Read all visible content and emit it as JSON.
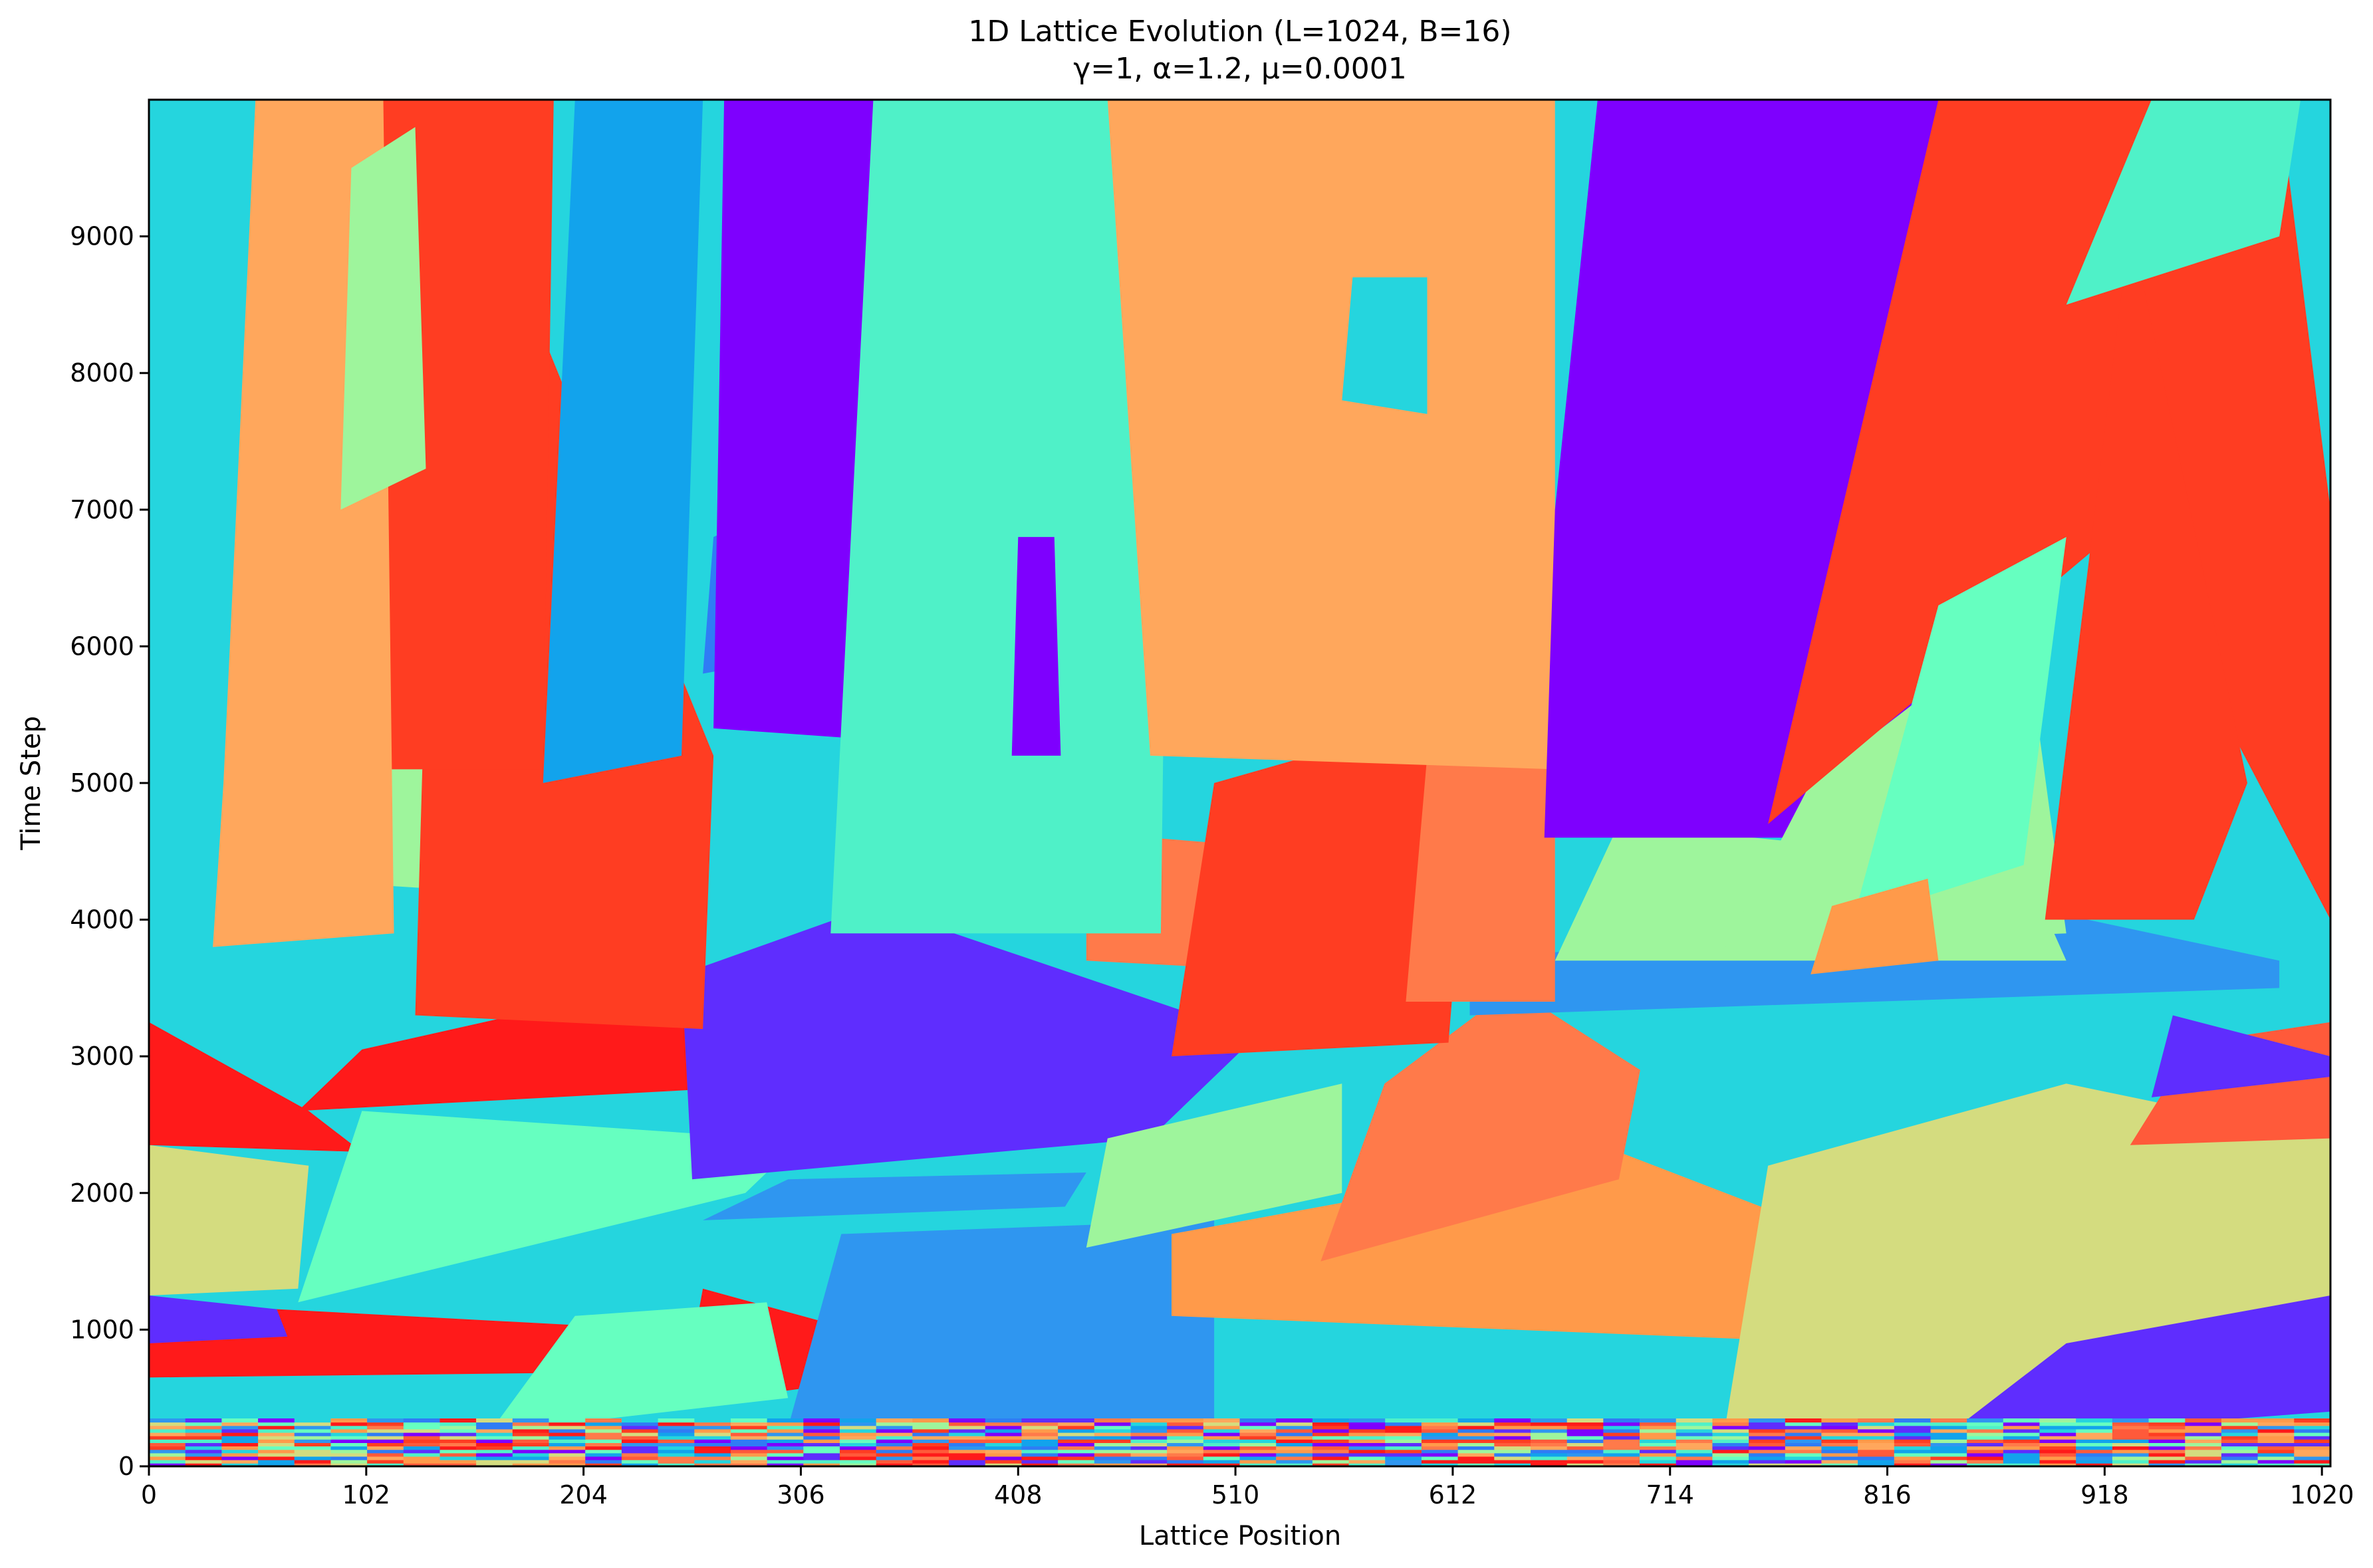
{
  "chart_data": {
    "type": "heatmap",
    "title_line1": "1D Lattice Evolution (L=1024, B=16)",
    "title_line2": "γ=1, α=1.2, μ=0.0001",
    "xlabel": "Lattice Position",
    "ylabel": "Time Step",
    "xlim": [
      0,
      1024
    ],
    "ylim": [
      0,
      10000
    ],
    "x_ticks": [
      0,
      102,
      204,
      306,
      408,
      510,
      612,
      714,
      816,
      918,
      1020
    ],
    "y_ticks": [
      0,
      1000,
      2000,
      3000,
      4000,
      5000,
      6000,
      7000,
      8000,
      9000
    ],
    "colormap": "rainbow",
    "n_states": 16,
    "background_color": "#25d5de",
    "domains": [
      {
        "color": "#2f96f0",
        "x": [
          90,
          200,
          150,
          40
        ],
        "y": [
          0,
          0,
          300,
          300
        ]
      },
      {
        "color": "#ff1a1a",
        "x": [
          0,
          290,
          240,
          0
        ],
        "y": [
          650,
          700,
          1000,
          1200
        ]
      },
      {
        "color": "#5f2dfe",
        "x": [
          0,
          65,
          60,
          0
        ],
        "y": [
          900,
          950,
          1150,
          1250
        ]
      },
      {
        "color": "#d4dc7f",
        "x": [
          0,
          70,
          75,
          0
        ],
        "y": [
          1250,
          1300,
          2200,
          2350
        ]
      },
      {
        "color": "#ff1a1a",
        "x": [
          0,
          100,
          75,
          0
        ],
        "y": [
          2350,
          2300,
          2600,
          3250
        ]
      },
      {
        "color": "#ff1a1a",
        "x": [
          70,
          310,
          290,
          200,
          100
        ],
        "y": [
          2600,
          2800,
          3300,
          3400,
          3050
        ]
      },
      {
        "color": "#66ffc0",
        "x": [
          70,
          280,
          300,
          290,
          100
        ],
        "y": [
          1200,
          2000,
          2300,
          2400,
          2600
        ]
      },
      {
        "color": "#ff1a1a",
        "x": [
          250,
          345,
          330,
          260
        ],
        "y": [
          450,
          650,
          1000,
          1300
        ]
      },
      {
        "color": "#66ffc0",
        "x": [
          160,
          300,
          290,
          200
        ],
        "y": [
          250,
          500,
          1200,
          1100
        ]
      },
      {
        "color": "#2f96f0",
        "x": [
          295,
          500,
          500,
          325
        ],
        "y": [
          0,
          0,
          1800,
          1700
        ]
      },
      {
        "color": "#5f2dfe",
        "x": [
          255,
          470,
          520,
          340,
          250
        ],
        "y": [
          2100,
          2400,
          3150,
          4100,
          3600
        ]
      },
      {
        "color": "#2f96f0",
        "x": [
          260,
          430,
          440,
          300
        ],
        "y": [
          1800,
          1900,
          2150,
          2100
        ]
      },
      {
        "color": "#ff9a4a",
        "x": [
          480,
          800,
          790,
          690,
          480
        ],
        "y": [
          1100,
          900,
          1700,
          2300,
          1700
        ]
      },
      {
        "color": "#5f2dfe",
        "x": [
          850,
          1024,
          1024,
          920,
          850
        ],
        "y": [
          200,
          400,
          1250,
          1650,
          900
        ]
      },
      {
        "color": "#d4dc7f",
        "x": [
          740,
          850,
          900,
          1024,
          1024,
          900,
          760
        ],
        "y": [
          300,
          300,
          900,
          1250,
          2400,
          2800,
          2200
        ]
      },
      {
        "color": "#ff5a3a",
        "x": [
          930,
          1024,
          1024,
          960
        ],
        "y": [
          2350,
          2400,
          3250,
          3100
        ]
      },
      {
        "color": "#5f2dfe",
        "x": [
          940,
          1024,
          1024,
          950
        ],
        "y": [
          2700,
          2850,
          3000,
          3300
        ]
      },
      {
        "color": "#ff7a4a",
        "x": [
          550,
          690,
          700,
          640,
          580
        ],
        "y": [
          1500,
          2100,
          2900,
          3500,
          2800
        ]
      },
      {
        "color": "#9ef59c",
        "x": [
          440,
          560,
          560,
          450
        ],
        "y": [
          1600,
          2000,
          2800,
          2400
        ]
      },
      {
        "color": "#2f96f0",
        "x": [
          620,
          1000,
          1000,
          880,
          620
        ],
        "y": [
          3300,
          3500,
          3700,
          4100,
          3700
        ]
      },
      {
        "color": "#9ef59c",
        "x": [
          660,
          900,
          880,
          690
        ],
        "y": [
          3700,
          3700,
          4400,
          4700
        ]
      },
      {
        "color": "#ff7a4a",
        "x": [
          440,
          560,
          550,
          470,
          440
        ],
        "y": [
          3700,
          3600,
          4500,
          4600,
          4000
        ]
      },
      {
        "color": "#ff3d22",
        "x": [
          480,
          610,
          620,
          590,
          500
        ],
        "y": [
          3000,
          3100,
          5000,
          5400,
          5000
        ]
      },
      {
        "color": "#ff7a4a",
        "x": [
          590,
          660,
          660,
          600
        ],
        "y": [
          3400,
          3400,
          5300,
          5200
        ]
      },
      {
        "color": "#9ef59c",
        "x": [
          60,
          160,
          140,
          45
        ],
        "y": [
          4300,
          4200,
          5300,
          6200
        ]
      },
      {
        "color": "#ff3d22",
        "x": [
          125,
          260,
          265,
          140,
          130
        ],
        "y": [
          3300,
          3200,
          5200,
          10000,
          6000
        ]
      },
      {
        "color": "#ff3d22",
        "x": [
          105,
          185,
          190,
          110
        ],
        "y": [
          5100,
          5100,
          10000,
          10000
        ]
      },
      {
        "color": "#ffa75c",
        "x": [
          30,
          115,
          110,
          50,
          35
        ],
        "y": [
          3800,
          3900,
          10000,
          10000,
          5000
        ]
      },
      {
        "color": "#9ef59c",
        "x": [
          90,
          130,
          125,
          95
        ],
        "y": [
          7000,
          7300,
          9800,
          9500
        ]
      },
      {
        "color": "#12a3ec",
        "x": [
          185,
          250,
          260,
          200
        ],
        "y": [
          5000,
          5200,
          10000,
          10000
        ]
      },
      {
        "color": "#2f7cf5",
        "x": [
          260,
          330,
          320,
          265
        ],
        "y": [
          5800,
          6000,
          7200,
          6800
        ]
      },
      {
        "color": "#7e00fe",
        "x": [
          265,
          355,
          340,
          270
        ],
        "y": [
          5400,
          5300,
          10000,
          10000
        ]
      },
      {
        "color": "#4ff1c8",
        "x": [
          320,
          475,
          480,
          340
        ],
        "y": [
          3900,
          3900,
          10000,
          10000
        ]
      },
      {
        "color": "#7e00fe",
        "x": [
          405,
          428,
          425,
          408
        ],
        "y": [
          5200,
          5200,
          6800,
          6800
        ]
      },
      {
        "color": "#ffa75c",
        "x": [
          470,
          660,
          660,
          450
        ],
        "y": [
          5200,
          5100,
          10000,
          10000
        ]
      },
      {
        "color": "#25d5de",
        "x": [
          560,
          600,
          600,
          565
        ],
        "y": [
          7800,
          7700,
          8700,
          8700
        ]
      },
      {
        "color": "#7e00fe",
        "x": [
          655,
          860,
          850,
          680,
          660
        ],
        "y": [
          4600,
          4600,
          10000,
          10000,
          7000
        ]
      },
      {
        "color": "#9ef59c",
        "x": [
          740,
          900,
          880,
          780
        ],
        "y": [
          3800,
          3900,
          6200,
          5000
        ]
      },
      {
        "color": "#ff3d22",
        "x": [
          760,
          920,
          960,
          1024,
          1024,
          1000,
          840
        ],
        "y": [
          4700,
          6800,
          5900,
          4000,
          7000,
          10000,
          10000
        ]
      },
      {
        "color": "#66ffc0",
        "x": [
          800,
          880,
          900,
          840
        ],
        "y": [
          4000,
          4400,
          6800,
          6300
        ]
      },
      {
        "color": "#ff3d22",
        "x": [
          890,
          930,
          985,
          960
        ],
        "y": [
          4000,
          9100,
          5000,
          4000
        ]
      },
      {
        "color": "#4ff1c8",
        "x": [
          900,
          1000,
          1010,
          940
        ],
        "y": [
          8500,
          9000,
          10000,
          10000
        ]
      },
      {
        "color": "#ff9a4a",
        "x": [
          780,
          840,
          835,
          790
        ],
        "y": [
          3600,
          3700,
          4300,
          4100
        ]
      }
    ],
    "bottom_noise": {
      "t_max": 350,
      "rows": 14,
      "cols": 60
    }
  }
}
